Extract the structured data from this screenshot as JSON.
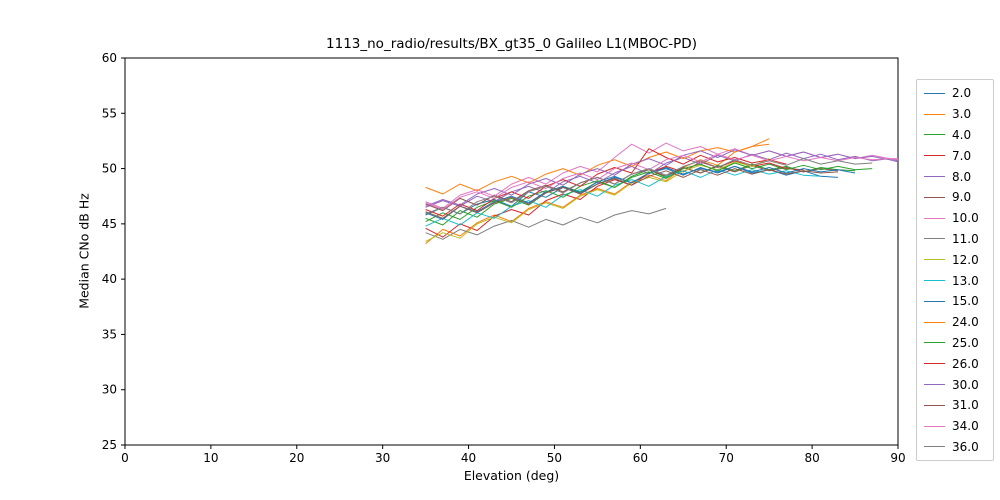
{
  "chart_data": {
    "type": "line",
    "title": "1113_no_radio/results/BX_gt35_0 Galileo L1(MBOC-PD)",
    "xlabel": "Elevation (deg)",
    "ylabel": "Median CNo dB Hz",
    "xlim": [
      0,
      90
    ],
    "ylim": [
      25,
      60
    ],
    "xticks": [
      0,
      10,
      20,
      30,
      40,
      50,
      60,
      70,
      80,
      90
    ],
    "yticks": [
      25,
      30,
      35,
      40,
      45,
      50,
      55,
      60
    ],
    "grid": false,
    "legend_position": "right-outside",
    "series": [
      {
        "name": "2.0",
        "color": "#1f77b4",
        "x": [
          35,
          37,
          39,
          41,
          43,
          45,
          47,
          49,
          51,
          53,
          55,
          57,
          59,
          61,
          63,
          65,
          67,
          69,
          71,
          73,
          75,
          77,
          79,
          81,
          83
        ],
        "y": [
          45.8,
          46.5,
          45.9,
          46.8,
          47.2,
          46.6,
          47.9,
          47.4,
          48.3,
          47.8,
          48.6,
          49.2,
          48.7,
          49.6,
          50.1,
          49.5,
          50.0,
          49.7,
          50.2,
          49.6,
          49.9,
          49.4,
          49.8,
          49.3,
          49.2
        ]
      },
      {
        "name": "3.0",
        "color": "#ff7f0e",
        "x": [
          35,
          37,
          39,
          41,
          43,
          45,
          47,
          49,
          51,
          53,
          55,
          57,
          59,
          61,
          63,
          65,
          67,
          69,
          71,
          73,
          75
        ],
        "y": [
          43.2,
          44.5,
          43.9,
          45.1,
          45.8,
          45.2,
          46.4,
          47.0,
          46.5,
          47.6,
          48.2,
          47.7,
          48.8,
          49.4,
          48.9,
          50.1,
          50.8,
          50.3,
          51.5,
          52.0,
          52.7
        ]
      },
      {
        "name": "4.0",
        "color": "#2ca02c",
        "x": [
          35,
          37,
          39,
          41,
          43,
          45,
          47,
          49,
          51,
          53,
          55,
          57,
          59,
          61,
          63,
          65,
          67,
          69,
          71,
          73,
          75,
          77,
          79,
          81,
          83,
          85
        ],
        "y": [
          45.5,
          44.9,
          46.2,
          45.6,
          46.8,
          47.3,
          46.7,
          47.8,
          48.4,
          47.9,
          48.8,
          48.3,
          49.3,
          49.9,
          49.2,
          50.1,
          49.6,
          50.3,
          49.8,
          50.4,
          49.9,
          50.2,
          49.7,
          50.1,
          49.9,
          49.8
        ]
      },
      {
        "name": "7.0",
        "color": "#d62728",
        "x": [
          35,
          37,
          39,
          41,
          43,
          45,
          47,
          49,
          51,
          53,
          55,
          57,
          59,
          61,
          63,
          65,
          67,
          69,
          71,
          73,
          75,
          77,
          79
        ],
        "y": [
          44.6,
          43.8,
          45.0,
          44.4,
          45.7,
          46.3,
          45.8,
          47.1,
          47.7,
          47.2,
          48.4,
          49.0,
          48.5,
          49.6,
          50.2,
          49.7,
          50.6,
          50.1,
          50.7,
          50.2,
          50.5,
          50.0,
          49.9
        ]
      },
      {
        "name": "8.0",
        "color": "#9467bd",
        "x": [
          35,
          37,
          39,
          41,
          43,
          45,
          47,
          49,
          51,
          53,
          55,
          57,
          59,
          61,
          63,
          65,
          67,
          69,
          71,
          73,
          75,
          77,
          79,
          81,
          83,
          85,
          87,
          89,
          90
        ],
        "y": [
          46.5,
          47.1,
          46.6,
          47.5,
          47.0,
          47.9,
          48.4,
          47.8,
          48.8,
          49.3,
          48.7,
          49.6,
          50.2,
          49.5,
          50.5,
          51.0,
          50.4,
          51.2,
          50.7,
          51.3,
          50.8,
          51.4,
          50.9,
          51.3,
          50.8,
          51.1,
          50.7,
          50.9,
          50.7
        ]
      },
      {
        "name": "9.0",
        "color": "#8c564b",
        "x": [
          35,
          37,
          39,
          41,
          43,
          45,
          47,
          49,
          51,
          53,
          55,
          57,
          59,
          61,
          63,
          65,
          67,
          69,
          71,
          73,
          75,
          77,
          79,
          81,
          83
        ],
        "y": [
          46.8,
          46.2,
          47.3,
          46.7,
          47.6,
          47.0,
          48.0,
          48.5,
          47.9,
          48.7,
          49.2,
          48.6,
          49.5,
          49.9,
          49.3,
          50.1,
          49.6,
          50.2,
          49.7,
          50.3,
          49.8,
          50.1,
          49.7,
          50.0,
          49.8
        ]
      },
      {
        "name": "10.0",
        "color": "#e377c2",
        "x": [
          35,
          37,
          39,
          41,
          43,
          45,
          47,
          49,
          51,
          53,
          55,
          57,
          59,
          61,
          63,
          65,
          67,
          69,
          71,
          73,
          75,
          77,
          79,
          81,
          83,
          85,
          87,
          89,
          90
        ],
        "y": [
          47.0,
          46.4,
          47.6,
          48.1,
          47.5,
          48.6,
          49.2,
          48.6,
          49.6,
          50.2,
          49.7,
          51.0,
          52.2,
          51.4,
          52.3,
          51.6,
          52.0,
          51.3,
          51.8,
          51.2,
          51.6,
          51.1,
          51.5,
          51.0,
          51.3,
          50.9,
          51.2,
          50.9,
          50.9
        ]
      },
      {
        "name": "11.0",
        "color": "#7f7f7f",
        "x": [
          35,
          37,
          39,
          41,
          43,
          45,
          47,
          49,
          51,
          53,
          55,
          57,
          59,
          61,
          63
        ],
        "y": [
          44.2,
          43.6,
          44.5,
          44.0,
          44.8,
          45.3,
          44.7,
          45.4,
          44.9,
          45.6,
          45.1,
          45.8,
          46.2,
          45.9,
          46.4
        ]
      },
      {
        "name": "12.0",
        "color": "#bcbd22",
        "x": [
          35,
          37,
          39,
          41,
          43,
          45,
          47,
          49,
          51,
          53,
          55,
          57,
          59,
          61,
          63,
          65,
          67,
          69,
          71,
          73,
          75
        ],
        "y": [
          43.4,
          44.2,
          43.7,
          45.0,
          45.6,
          45.1,
          46.3,
          46.9,
          46.4,
          47.5,
          48.1,
          47.6,
          48.7,
          49.2,
          48.8,
          49.8,
          50.3,
          49.9,
          50.6,
          50.2,
          50.9
        ]
      },
      {
        "name": "13.0",
        "color": "#17becf",
        "x": [
          35,
          37,
          39,
          41,
          43,
          45,
          47,
          49,
          51,
          53,
          55,
          57,
          59,
          61,
          63,
          65,
          67,
          69,
          71,
          73,
          75,
          77,
          79,
          81
        ],
        "y": [
          44.8,
          45.5,
          44.9,
          46.0,
          45.5,
          46.6,
          47.1,
          46.5,
          47.6,
          48.1,
          47.5,
          48.5,
          49.0,
          48.4,
          49.3,
          49.8,
          49.2,
          49.9,
          49.4,
          49.9,
          49.5,
          49.8,
          49.4,
          49.3
        ]
      },
      {
        "name": "15.0",
        "color": "#1f77b4",
        "x": [
          35,
          37,
          39,
          41,
          43,
          45,
          47,
          49,
          51,
          53,
          55,
          57,
          59,
          61,
          63,
          65,
          67,
          69,
          71,
          73,
          75,
          77,
          79,
          81,
          83,
          85
        ],
        "y": [
          46.0,
          45.4,
          46.6,
          46.1,
          47.0,
          47.5,
          46.9,
          47.9,
          48.4,
          47.8,
          48.8,
          49.3,
          48.7,
          49.6,
          50.0,
          49.4,
          50.1,
          49.6,
          50.2,
          49.7,
          50.1,
          49.6,
          50.0,
          49.7,
          49.9,
          49.6
        ]
      },
      {
        "name": "24.0",
        "color": "#ff7f0e",
        "x": [
          35,
          37,
          39,
          41,
          43,
          45,
          47,
          49,
          51,
          53,
          55,
          57,
          59,
          61,
          63,
          65,
          67,
          69,
          71,
          73,
          75
        ],
        "y": [
          48.3,
          47.7,
          48.6,
          48.0,
          48.8,
          49.3,
          48.7,
          49.5,
          50.0,
          49.4,
          50.3,
          50.8,
          50.2,
          51.0,
          51.5,
          50.9,
          51.6,
          51.9,
          51.5,
          52.0,
          52.2
        ]
      },
      {
        "name": "25.0",
        "color": "#2ca02c",
        "x": [
          35,
          37,
          39,
          41,
          43,
          45,
          47,
          49,
          51,
          53,
          55,
          57,
          59,
          61,
          63,
          65,
          67,
          69,
          71,
          73,
          75,
          77,
          79,
          81,
          83,
          85,
          87
        ],
        "y": [
          45.2,
          46.0,
          45.4,
          46.5,
          47.1,
          46.5,
          47.5,
          48.0,
          47.4,
          48.4,
          48.9,
          48.3,
          49.2,
          49.7,
          49.1,
          50.0,
          50.4,
          49.8,
          50.5,
          50.0,
          50.4,
          49.9,
          50.3,
          49.9,
          50.2,
          49.9,
          50.0
        ]
      },
      {
        "name": "26.0",
        "color": "#d62728",
        "x": [
          35,
          37,
          39,
          41,
          43,
          45,
          47,
          49,
          51,
          53,
          55,
          57,
          59,
          61,
          63,
          65,
          67,
          69,
          71,
          73,
          75,
          77
        ],
        "y": [
          46.3,
          45.7,
          46.8,
          46.2,
          47.3,
          47.9,
          47.3,
          48.4,
          49.0,
          48.4,
          49.5,
          50.1,
          49.6,
          51.8,
          51.0,
          50.4,
          51.2,
          50.6,
          51.0,
          50.5,
          50.8,
          50.4
        ]
      },
      {
        "name": "30.0",
        "color": "#9467bd",
        "x": [
          35,
          37,
          39,
          41,
          43,
          45,
          47,
          49,
          51,
          53,
          55,
          57,
          59,
          61,
          63,
          65,
          67,
          69,
          71,
          73,
          75,
          77,
          79,
          81,
          83,
          85,
          87,
          89,
          90
        ],
        "y": [
          46.6,
          47.2,
          46.7,
          47.7,
          48.2,
          47.6,
          48.6,
          49.1,
          48.5,
          49.5,
          50.0,
          49.4,
          50.4,
          50.9,
          50.3,
          51.2,
          51.6,
          51.0,
          51.7,
          51.2,
          51.6,
          51.1,
          51.5,
          51.0,
          51.3,
          50.9,
          51.1,
          50.8,
          50.6
        ]
      },
      {
        "name": "31.0",
        "color": "#8c564b",
        "x": [
          35,
          37,
          39,
          41,
          43,
          45,
          47,
          49,
          51,
          53,
          55,
          57,
          59,
          61,
          63,
          65,
          67,
          69,
          71,
          73,
          75,
          77,
          79,
          81,
          83
        ],
        "y": [
          46.1,
          45.5,
          46.6,
          46.0,
          46.9,
          47.4,
          46.8,
          47.8,
          48.3,
          47.7,
          48.6,
          49.1,
          48.5,
          49.3,
          49.8,
          49.2,
          49.9,
          49.4,
          50.0,
          49.5,
          49.9,
          49.5,
          49.8,
          49.6,
          49.7
        ]
      },
      {
        "name": "34.0",
        "color": "#e377c2",
        "x": [
          35,
          37,
          39,
          41,
          43,
          45,
          47,
          49,
          51,
          53,
          55,
          57,
          59,
          61,
          63,
          65,
          67,
          69,
          71,
          73,
          75,
          77,
          79,
          81,
          83,
          85,
          87,
          89,
          90
        ],
        "y": [
          46.9,
          46.3,
          47.4,
          47.9,
          47.3,
          48.3,
          48.8,
          48.2,
          49.1,
          49.6,
          49.0,
          50.0,
          50.5,
          49.9,
          50.8,
          51.2,
          50.6,
          51.3,
          50.8,
          51.2,
          50.7,
          51.1,
          50.7,
          51.0,
          50.7,
          51.0,
          50.8,
          50.9,
          50.8
        ]
      },
      {
        "name": "36.0",
        "color": "#7f7f7f",
        "x": [
          35,
          37,
          39,
          41,
          43,
          45,
          47,
          49,
          51,
          53,
          55,
          57,
          59,
          61,
          63,
          65,
          67,
          69,
          71,
          73,
          75,
          77,
          79,
          81,
          83,
          85,
          87
        ],
        "y": [
          45.9,
          46.5,
          45.9,
          47.0,
          47.5,
          46.9,
          47.9,
          48.4,
          47.8,
          48.7,
          49.2,
          48.6,
          49.5,
          50.0,
          49.4,
          50.2,
          50.7,
          50.1,
          50.8,
          50.3,
          50.7,
          50.3,
          50.9,
          50.4,
          50.7,
          50.4,
          50.5
        ]
      }
    ]
  }
}
